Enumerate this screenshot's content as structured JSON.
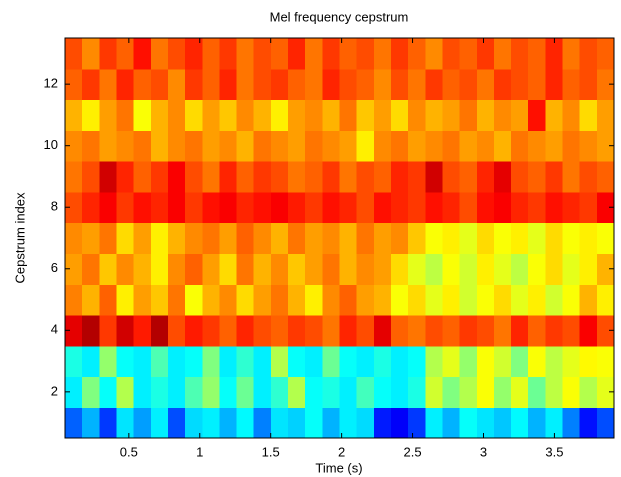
{
  "chart_data": {
    "type": "heatmap",
    "title": "Mel frequency cepstrum",
    "xlabel": "Time (s)",
    "ylabel": "Cepstrum index",
    "colormap": "jet",
    "clim": [
      0,
      1
    ],
    "xlim": [
      0.05,
      3.92
    ],
    "ylim": [
      0.5,
      13.5
    ],
    "xticks": [
      0.5,
      1,
      1.5,
      2,
      2.5,
      3,
      3.5
    ],
    "yticks": [
      2,
      4,
      6,
      8,
      10,
      12
    ],
    "y": [
      1,
      2,
      3,
      4,
      5,
      6,
      7,
      8,
      9,
      10,
      11,
      12,
      13
    ],
    "z": [
      [
        0.22,
        0.3,
        0.18,
        0.35,
        0.28,
        0.36,
        0.2,
        0.34,
        0.36,
        0.3,
        0.37,
        0.25,
        0.35,
        0.33,
        0.38,
        0.3,
        0.36,
        0.34,
        0.15,
        0.12,
        0.18,
        0.36,
        0.3,
        0.38,
        0.35,
        0.32,
        0.37,
        0.3,
        0.36,
        0.25,
        0.14,
        0.2
      ],
      [
        0.36,
        0.5,
        0.38,
        0.55,
        0.36,
        0.4,
        0.36,
        0.45,
        0.52,
        0.38,
        0.48,
        0.36,
        0.42,
        0.55,
        0.38,
        0.4,
        0.36,
        0.44,
        0.38,
        0.36,
        0.4,
        0.58,
        0.5,
        0.55,
        0.62,
        0.52,
        0.6,
        0.48,
        0.56,
        0.62,
        0.55,
        0.6
      ],
      [
        0.4,
        0.36,
        0.52,
        0.38,
        0.36,
        0.45,
        0.36,
        0.38,
        0.5,
        0.36,
        0.42,
        0.36,
        0.55,
        0.38,
        0.36,
        0.48,
        0.38,
        0.36,
        0.4,
        0.36,
        0.38,
        0.55,
        0.6,
        0.52,
        0.62,
        0.58,
        0.5,
        0.62,
        0.56,
        0.6,
        0.63,
        0.62
      ],
      [
        0.9,
        0.95,
        0.82,
        0.92,
        0.85,
        0.95,
        0.8,
        0.85,
        0.82,
        0.78,
        0.84,
        0.8,
        0.78,
        0.82,
        0.8,
        0.76,
        0.84,
        0.8,
        0.9,
        0.78,
        0.76,
        0.8,
        0.78,
        0.82,
        0.8,
        0.76,
        0.84,
        0.78,
        0.82,
        0.8,
        0.88,
        0.8
      ],
      [
        0.75,
        0.7,
        0.78,
        0.64,
        0.72,
        0.68,
        0.76,
        0.62,
        0.7,
        0.74,
        0.66,
        0.72,
        0.76,
        0.7,
        0.64,
        0.74,
        0.78,
        0.72,
        0.7,
        0.62,
        0.66,
        0.6,
        0.64,
        0.58,
        0.62,
        0.66,
        0.6,
        0.64,
        0.58,
        0.62,
        0.7,
        0.64
      ],
      [
        0.72,
        0.76,
        0.68,
        0.74,
        0.7,
        0.64,
        0.74,
        0.78,
        0.72,
        0.66,
        0.76,
        0.7,
        0.74,
        0.68,
        0.72,
        0.76,
        0.7,
        0.74,
        0.72,
        0.66,
        0.6,
        0.56,
        0.62,
        0.58,
        0.64,
        0.6,
        0.56,
        0.62,
        0.66,
        0.6,
        0.64,
        0.7
      ],
      [
        0.74,
        0.72,
        0.76,
        0.66,
        0.72,
        0.64,
        0.7,
        0.74,
        0.76,
        0.72,
        0.78,
        0.74,
        0.7,
        0.76,
        0.72,
        0.74,
        0.7,
        0.76,
        0.72,
        0.74,
        0.68,
        0.62,
        0.64,
        0.6,
        0.66,
        0.62,
        0.64,
        0.6,
        0.66,
        0.62,
        0.64,
        0.62
      ],
      [
        0.8,
        0.84,
        0.88,
        0.82,
        0.86,
        0.84,
        0.88,
        0.82,
        0.86,
        0.88,
        0.84,
        0.86,
        0.88,
        0.85,
        0.82,
        0.86,
        0.84,
        0.8,
        0.86,
        0.84,
        0.82,
        0.86,
        0.84,
        0.8,
        0.86,
        0.88,
        0.84,
        0.82,
        0.86,
        0.84,
        0.82,
        0.88
      ],
      [
        0.76,
        0.8,
        0.92,
        0.84,
        0.78,
        0.82,
        0.88,
        0.8,
        0.76,
        0.84,
        0.78,
        0.82,
        0.8,
        0.76,
        0.78,
        0.82,
        0.76,
        0.8,
        0.78,
        0.84,
        0.82,
        0.92,
        0.8,
        0.78,
        0.84,
        0.9,
        0.8,
        0.78,
        0.82,
        0.76,
        0.8,
        0.78
      ],
      [
        0.74,
        0.76,
        0.72,
        0.74,
        0.76,
        0.7,
        0.74,
        0.76,
        0.72,
        0.74,
        0.7,
        0.76,
        0.74,
        0.72,
        0.76,
        0.74,
        0.72,
        0.64,
        0.74,
        0.76,
        0.72,
        0.74,
        0.76,
        0.72,
        0.74,
        0.7,
        0.76,
        0.74,
        0.72,
        0.76,
        0.74,
        0.72
      ],
      [
        0.7,
        0.64,
        0.72,
        0.76,
        0.62,
        0.7,
        0.74,
        0.66,
        0.72,
        0.68,
        0.74,
        0.7,
        0.64,
        0.72,
        0.74,
        0.7,
        0.76,
        0.68,
        0.72,
        0.66,
        0.74,
        0.7,
        0.72,
        0.76,
        0.7,
        0.74,
        0.72,
        0.86,
        0.7,
        0.74,
        0.66,
        0.72
      ],
      [
        0.78,
        0.82,
        0.76,
        0.84,
        0.78,
        0.8,
        0.74,
        0.82,
        0.78,
        0.84,
        0.76,
        0.8,
        0.82,
        0.78,
        0.76,
        0.84,
        0.8,
        0.78,
        0.74,
        0.8,
        0.76,
        0.82,
        0.78,
        0.8,
        0.76,
        0.82,
        0.8,
        0.78,
        0.84,
        0.78,
        0.8,
        0.76
      ],
      [
        0.8,
        0.74,
        0.82,
        0.78,
        0.86,
        0.76,
        0.8,
        0.84,
        0.78,
        0.82,
        0.76,
        0.8,
        0.78,
        0.84,
        0.76,
        0.82,
        0.78,
        0.8,
        0.76,
        0.82,
        0.78,
        0.74,
        0.8,
        0.78,
        0.82,
        0.76,
        0.8,
        0.78,
        0.84,
        0.76,
        0.8,
        0.78
      ]
    ]
  }
}
